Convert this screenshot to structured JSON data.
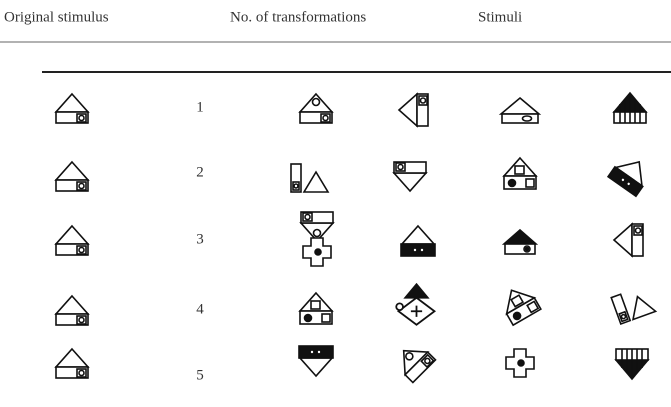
{
  "header": {
    "columns": [
      "Original stimulus",
      "No. of transformations",
      "Stimuli"
    ]
  },
  "table": {
    "rows": [
      {
        "transformations": 1
      },
      {
        "transformations": 2
      },
      {
        "transformations": 3
      },
      {
        "transformations": 4
      },
      {
        "transformations": 5
      }
    ]
  }
}
